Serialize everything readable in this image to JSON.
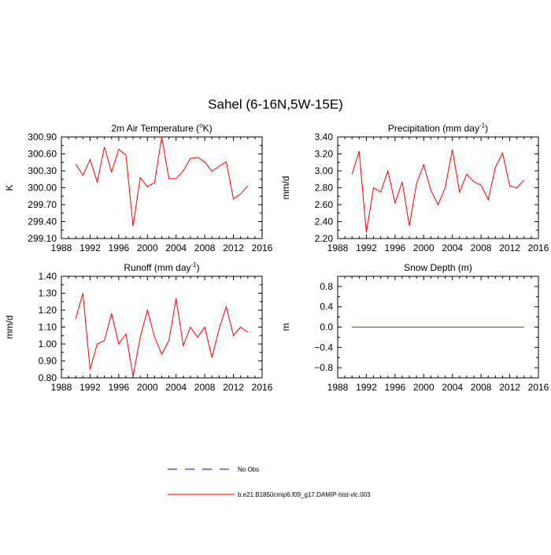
{
  "figure": {
    "title": "Sahel (6-16N,5W-15E)"
  },
  "legend": {
    "entries": [
      {
        "label": "No Obs",
        "color": "#0000ff",
        "dashed": true
      },
      {
        "label": "b.e21.B1850cmip6.f09_g17.DAMIP-hist-vlc.003",
        "color": "#ff0000",
        "dashed": false
      }
    ]
  },
  "chart_data": [
    {
      "id": "temp",
      "type": "line",
      "title": "2m Air Temperature (°K)",
      "title_parts": {
        "pre": "2m Air Temperature (",
        "sup": "o",
        "post": "K)"
      },
      "xlabel": "",
      "ylabel": "K",
      "xlim": [
        1988,
        2016
      ],
      "ylim": [
        299.1,
        300.9
      ],
      "xticks": [
        1988,
        1992,
        1996,
        2000,
        2004,
        2008,
        2012,
        2016
      ],
      "yticks": [
        299.1,
        299.4,
        299.7,
        300.0,
        300.3,
        300.6,
        300.9
      ],
      "ytick_labels": [
        "299.10",
        "299.40",
        "299.70",
        "300.00",
        "300.30",
        "300.60",
        "300.90"
      ],
      "series": [
        {
          "name": "b.e21.B1850cmip6.f09_g17.DAMIP-hist-vlc.003",
          "color": "#ff0000",
          "x": [
            1990,
            1991,
            1992,
            1993,
            1994,
            1995,
            1996,
            1997,
            1998,
            1999,
            2000,
            2001,
            2002,
            2003,
            2004,
            2005,
            2006,
            2007,
            2008,
            2009,
            2010,
            2011,
            2012,
            2013,
            2014
          ],
          "values": [
            300.42,
            300.22,
            300.5,
            300.1,
            300.72,
            300.28,
            300.68,
            300.58,
            299.32,
            300.18,
            300.02,
            300.09,
            300.9,
            300.16,
            300.16,
            300.3,
            300.52,
            300.54,
            300.46,
            300.29,
            300.38,
            300.46,
            299.8,
            299.89,
            300.03
          ]
        }
      ]
    },
    {
      "id": "precip",
      "type": "line",
      "title": "Precipitation (mm day-1)",
      "title_parts": {
        "pre": "Precipitation (mm day",
        "sup": "-1",
        "post": ")"
      },
      "xlabel": "",
      "ylabel": "mm/d",
      "xlim": [
        1988,
        2016
      ],
      "ylim": [
        2.2,
        3.4
      ],
      "xticks": [
        1988,
        1992,
        1996,
        2000,
        2004,
        2008,
        2012,
        2016
      ],
      "yticks": [
        2.2,
        2.4,
        2.6,
        2.8,
        3.0,
        3.2,
        3.4
      ],
      "ytick_labels": [
        "2.20",
        "2.40",
        "2.60",
        "2.80",
        "3.00",
        "3.20",
        "3.40"
      ],
      "series": [
        {
          "name": "b.e21.B1850cmip6.f09_g17.DAMIP-hist-vlc.003",
          "color": "#ff0000",
          "x": [
            1990,
            1991,
            1992,
            1993,
            1994,
            1995,
            1996,
            1997,
            1998,
            1999,
            2000,
            2001,
            2002,
            2003,
            2004,
            2005,
            2006,
            2007,
            2008,
            2009,
            2010,
            2011,
            2012,
            2013,
            2014
          ],
          "values": [
            2.96,
            3.23,
            2.27,
            2.8,
            2.75,
            3.0,
            2.62,
            2.87,
            2.35,
            2.85,
            3.07,
            2.77,
            2.6,
            2.8,
            3.25,
            2.75,
            2.96,
            2.87,
            2.83,
            2.66,
            3.04,
            3.21,
            2.82,
            2.8,
            2.89
          ]
        }
      ]
    },
    {
      "id": "runoff",
      "type": "line",
      "title": "Runoff (mm day-1)",
      "title_parts": {
        "pre": "Runoff (mm day",
        "sup": "-1",
        "post": ")"
      },
      "xlabel": "",
      "ylabel": "mm/d",
      "xlim": [
        1988,
        2016
      ],
      "ylim": [
        0.8,
        1.4
      ],
      "xticks": [
        1988,
        1992,
        1996,
        2000,
        2004,
        2008,
        2012,
        2016
      ],
      "yticks": [
        0.8,
        0.9,
        1.0,
        1.1,
        1.2,
        1.3,
        1.4
      ],
      "ytick_labels": [
        "0.80",
        "0.90",
        "1.00",
        "1.10",
        "1.20",
        "1.30",
        "1.40"
      ],
      "series": [
        {
          "name": "b.e21.B1850cmip6.f09_g17.DAMIP-hist-vlc.003",
          "color": "#ff0000",
          "x": [
            1990,
            1991,
            1992,
            1993,
            1994,
            1995,
            1996,
            1997,
            1998,
            1999,
            2000,
            2001,
            2002,
            2003,
            2004,
            2005,
            2006,
            2007,
            2008,
            2009,
            2010,
            2011,
            2012,
            2013,
            2014
          ],
          "values": [
            1.15,
            1.3,
            0.85,
            1.0,
            1.02,
            1.18,
            1.0,
            1.06,
            0.81,
            1.04,
            1.2,
            1.04,
            0.94,
            1.02,
            1.27,
            0.99,
            1.1,
            1.04,
            1.1,
            0.92,
            1.09,
            1.22,
            1.05,
            1.1,
            1.07
          ]
        }
      ]
    },
    {
      "id": "snow",
      "type": "line",
      "title": "Snow Depth (m)",
      "title_parts": {
        "pre": "Snow Depth (m)",
        "sup": "",
        "post": ""
      },
      "xlabel": "",
      "ylabel": "m",
      "xlim": [
        1988,
        2016
      ],
      "ylim": [
        -1.0,
        1.0
      ],
      "xticks": [
        1988,
        1992,
        1996,
        2000,
        2004,
        2008,
        2012,
        2016
      ],
      "yticks": [
        -0.8,
        -0.4,
        0.0,
        0.4,
        0.8
      ],
      "ytick_labels": [
        "−0.8",
        "−0.4",
        "0.0",
        "0.4",
        "0.8"
      ],
      "series": [
        {
          "name": "b.e21.B1850cmip6.f09_g17.DAMIP-hist-vlc.003",
          "color": "#ff0000",
          "x": [
            1990,
            2014
          ],
          "values": [
            0.0,
            0.0
          ]
        }
      ]
    }
  ]
}
